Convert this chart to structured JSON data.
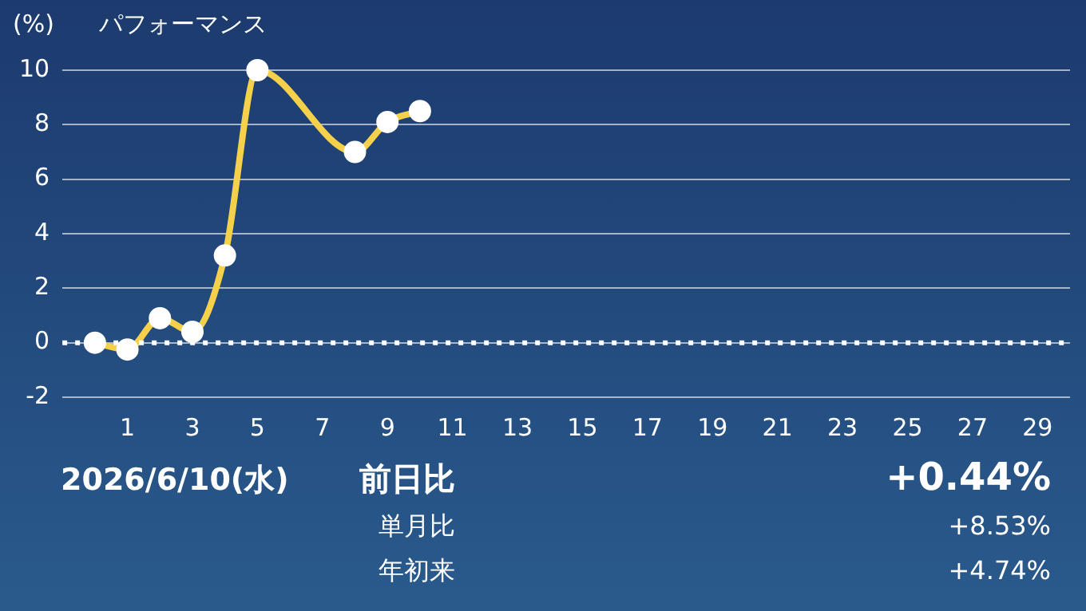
{
  "chart_data": {
    "type": "line",
    "title": "パフォーマンス",
    "ylabel": "(%)",
    "x": [
      0,
      1,
      2,
      3,
      4,
      5,
      8,
      9,
      10
    ],
    "series": [
      {
        "color": "#f5d04a",
        "values": [
          0,
          -0.25,
          0.9,
          0.4,
          3.2,
          10,
          7,
          8.1,
          8.5
        ]
      }
    ],
    "xlim": [
      -1,
      30
    ],
    "xticks": [
      1,
      3,
      5,
      7,
      9,
      11,
      13,
      15,
      17,
      19,
      21,
      23,
      25,
      27,
      29
    ],
    "ylim": [
      -2,
      10
    ],
    "yticks": [
      -2,
      0,
      2,
      4,
      6,
      8,
      10
    ],
    "grid": "y",
    "legend": false,
    "marker": "circle",
    "line_style": "solid",
    "ref_lines": [
      {
        "axis": "y",
        "value": 0,
        "color": "#ffffff",
        "line_style": "dotted"
      }
    ],
    "annotations": [
      "2026/6/10(水)",
      "前日比",
      "+0.44%",
      "単月比",
      "+8.53%",
      "年初来",
      "+4.74%"
    ]
  }
}
